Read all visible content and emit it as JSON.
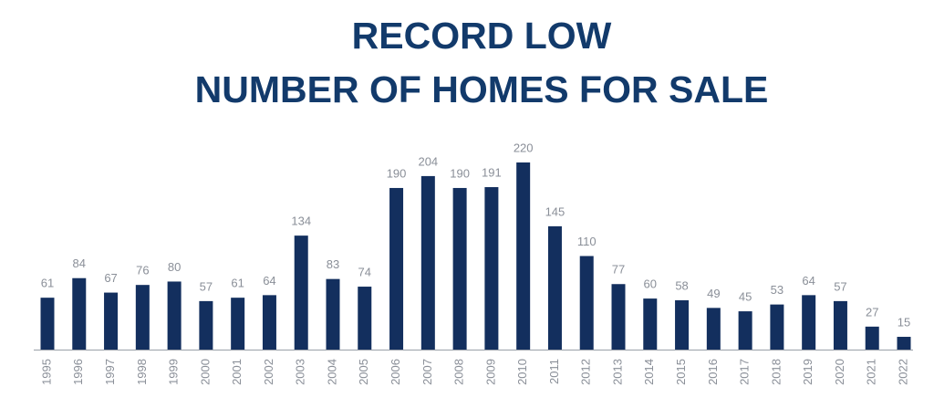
{
  "chart_data": {
    "type": "bar",
    "title": [
      "RECORD LOW",
      "NUMBER OF HOMES FOR SALE"
    ],
    "categories": [
      "1995",
      "1996",
      "1997",
      "1998",
      "1999",
      "2000",
      "2001",
      "2002",
      "2003",
      "2004",
      "2005",
      "2006",
      "2007",
      "2008",
      "2009",
      "2010",
      "2011",
      "2012",
      "2013",
      "2014",
      "2015",
      "2016",
      "2017",
      "2018",
      "2019",
      "2020",
      "2021",
      "2022"
    ],
    "values": [
      61,
      84,
      67,
      76,
      80,
      57,
      61,
      64,
      134,
      83,
      74,
      190,
      204,
      190,
      191,
      220,
      145,
      110,
      77,
      60,
      58,
      49,
      45,
      53,
      64,
      57,
      27,
      15
    ],
    "color": "#132f5e",
    "ylim": [
      0,
      220
    ]
  }
}
